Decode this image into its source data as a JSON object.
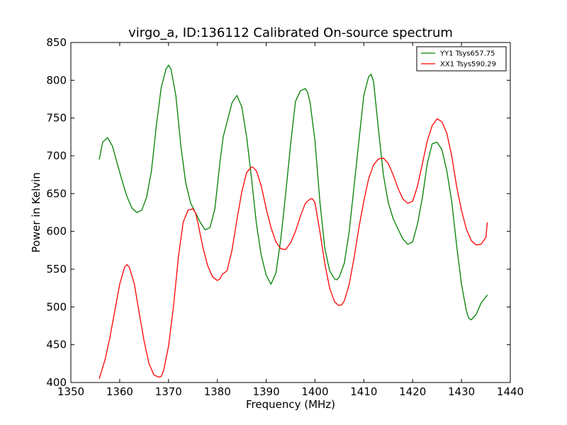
{
  "chart_data": {
    "type": "line",
    "title": "virgo_a, ID:136112 Calibrated On-source spectrum",
    "xlabel": "Frequency (MHz)",
    "ylabel": "Power in Kelvin",
    "xlim": [
      1350,
      1440
    ],
    "ylim": [
      400,
      850
    ],
    "xticks": [
      1350,
      1360,
      1370,
      1380,
      1390,
      1400,
      1410,
      1420,
      1430,
      1440
    ],
    "yticks": [
      400,
      450,
      500,
      550,
      600,
      650,
      700,
      750,
      800,
      850
    ],
    "grid": false,
    "legend_position": "top-right",
    "series": [
      {
        "name": "YY1 Tsys657.75",
        "color": "#008000",
        "x": [
          1355.8,
          1356.5,
          1357.5,
          1358.5,
          1359.5,
          1360.5,
          1361.5,
          1362.5,
          1363.5,
          1364.5,
          1365.5,
          1366.5,
          1367.5,
          1368.5,
          1369.5,
          1370,
          1370.5,
          1371.5,
          1372.5,
          1373.5,
          1374.5,
          1375.5,
          1376.5,
          1377.5,
          1378.5,
          1379.5,
          1380.5,
          1381.2,
          1382,
          1383,
          1384,
          1385,
          1386,
          1387,
          1388,
          1389,
          1390,
          1391,
          1392,
          1393,
          1394,
          1395,
          1396,
          1397,
          1398,
          1398.5,
          1399,
          1400,
          1401,
          1402,
          1403,
          1404,
          1404.5,
          1405,
          1406,
          1407,
          1408,
          1409,
          1410,
          1411,
          1411.5,
          1412,
          1413,
          1414,
          1415,
          1416,
          1417,
          1418,
          1419,
          1420,
          1421,
          1422,
          1423,
          1424,
          1425,
          1426,
          1427,
          1428,
          1429,
          1430,
          1431,
          1431.5,
          1432,
          1433,
          1434,
          1435.3
        ],
        "y": [
          695,
          718,
          724,
          713,
          690,
          667,
          646,
          631,
          625,
          628,
          645,
          680,
          740,
          790,
          815,
          820,
          815,
          780,
          715,
          665,
          638,
          625,
          612,
          602,
          605,
          630,
          690,
          725,
          745,
          770,
          780,
          765,
          725,
          670,
          610,
          568,
          542,
          530,
          545,
          590,
          650,
          715,
          772,
          786,
          789,
          784,
          770,
          720,
          640,
          578,
          548,
          537,
          536,
          540,
          558,
          600,
          660,
          720,
          780,
          805,
          808,
          798,
          735,
          675,
          638,
          617,
          603,
          590,
          583,
          586,
          610,
          645,
          690,
          716,
          718,
          708,
          680,
          640,
          582,
          530,
          495,
          485,
          483,
          490,
          505,
          516
        ]
      },
      {
        "name": "XX1 Tsys590.29",
        "color": "#ff0000",
        "x": [
          1355.8,
          1357,
          1358,
          1359,
          1360,
          1361,
          1361.5,
          1362,
          1363,
          1364,
          1365,
          1366,
          1367,
          1368,
          1368.5,
          1369,
          1370,
          1371,
          1372,
          1373,
          1374,
          1375,
          1375.5,
          1376,
          1377,
          1378,
          1379,
          1380,
          1380.5,
          1381,
          1382,
          1383,
          1384,
          1385,
          1386,
          1387,
          1387.3,
          1388,
          1389,
          1390,
          1391,
          1392,
          1393,
          1394,
          1395,
          1396,
          1397,
          1398,
          1399,
          1399.5,
          1400,
          1401,
          1402,
          1403,
          1404,
          1404.8,
          1405.5,
          1406,
          1407,
          1408,
          1409,
          1410,
          1411,
          1412,
          1413,
          1414,
          1415,
          1416,
          1417,
          1418,
          1419,
          1420,
          1421,
          1422,
          1423,
          1424,
          1425,
          1426,
          1427,
          1428,
          1429,
          1430,
          1431,
          1432,
          1433,
          1434,
          1435,
          1435.3
        ],
        "y": [
          405,
          430,
          460,
          495,
          530,
          553,
          556,
          552,
          530,
          492,
          455,
          425,
          410,
          407,
          408,
          416,
          448,
          500,
          565,
          612,
          628,
          630,
          625,
          612,
          580,
          555,
          540,
          535,
          537,
          543,
          548,
          575,
          615,
          652,
          678,
          685,
          685,
          680,
          660,
          630,
          605,
          586,
          577,
          576,
          585,
          600,
          620,
          637,
          643,
          643,
          638,
          600,
          558,
          525,
          507,
          502,
          503,
          508,
          530,
          565,
          605,
          640,
          670,
          688,
          696,
          697,
          690,
          675,
          657,
          643,
          637,
          640,
          660,
          690,
          720,
          740,
          749,
          745,
          730,
          700,
          660,
          628,
          603,
          588,
          582,
          583,
          592,
          612
        ]
      }
    ]
  }
}
